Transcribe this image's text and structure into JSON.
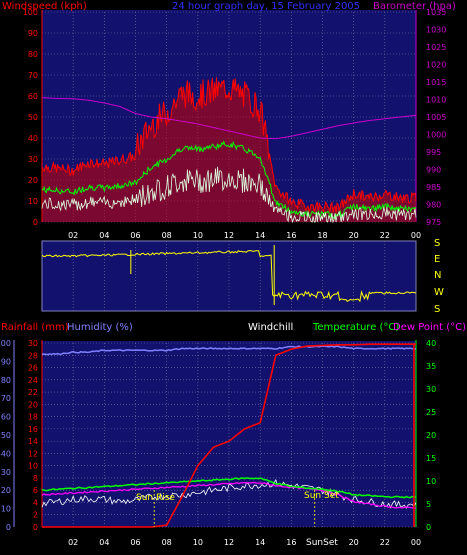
{
  "colors": {
    "background": "#000000",
    "panel": "#12126e",
    "grid": "#7a7aa8",
    "red": "#ff0000",
    "windspeed": "#ff0000",
    "gust_green": "#00ff00",
    "wind_white": "#e0ffe0",
    "barometer": "#cc00cc",
    "title": "#3030ff",
    "yellow": "#ffff00",
    "humidity": "#8080ff",
    "temperature": "#00ff00",
    "dewpoint": "#ff00ff",
    "windchill": "#ffffff",
    "sun": "#ffff00"
  },
  "top_chart": {
    "title": "24 hour graph day, 15 February 2005",
    "left_label": "Windspeed (kph)",
    "right_label": "Barometer (hpa)",
    "left_ticks": [
      "0",
      "10",
      "20",
      "30",
      "40",
      "50",
      "60",
      "70",
      "80",
      "90",
      "100"
    ],
    "right_ticks": [
      "975",
      "980",
      "985",
      "990",
      "995",
      "1000",
      "1005",
      "1010",
      "1015",
      "1020",
      "1025",
      "1030",
      "1035"
    ],
    "x_ticks": [
      "02",
      "04",
      "06",
      "08",
      "10",
      "12",
      "14",
      "16",
      "18",
      "20",
      "22",
      "00"
    ]
  },
  "direction_chart": {
    "labels": [
      "S",
      "E",
      "N",
      "W",
      "S"
    ]
  },
  "bottom_chart": {
    "rainfall_label": "Rainfall (mm)",
    "humidity_label": "Humidity (%)",
    "windchill_label": "Windchill",
    "temperature_label": "Temperature (°C)",
    "dewpoint_label": "Dew Point (°C)",
    "left_ticks": [
      "0",
      "10",
      "20",
      "30",
      "40",
      "50",
      "60",
      "70",
      "80",
      "90",
      "100"
    ],
    "mid_ticks": [
      "0",
      "2",
      "4",
      "6",
      "8",
      "10",
      "12",
      "14",
      "16",
      "18",
      "20",
      "22",
      "24",
      "26",
      "28",
      "30"
    ],
    "right_ticks": [
      "0",
      "5",
      "10",
      "15",
      "20",
      "25",
      "30",
      "35",
      "40"
    ],
    "x_ticks": [
      "02",
      "04",
      "06",
      "08",
      "10",
      "12",
      "14",
      "16",
      "18",
      "20",
      "22",
      "00"
    ],
    "sunrise_label": "Sun Rise",
    "sunset_label": "Sun Set",
    "sunset_tick_label": "SunSet"
  },
  "chart_data": [
    {
      "type": "line",
      "title": "24 hour graph day, 15 February 2005",
      "xlabel": "",
      "ylabel": "Windspeed (kph)",
      "y2label": "Barometer (hpa)",
      "ylim": [
        0,
        100
      ],
      "y2lim": [
        975,
        1035
      ],
      "x": [
        0,
        1,
        2,
        3,
        4,
        5,
        6,
        7,
        8,
        9,
        10,
        11,
        12,
        13,
        14,
        15,
        16,
        17,
        18,
        19,
        20,
        21,
        22,
        23,
        24
      ],
      "series": [
        {
          "name": "Windspeed (kph)",
          "values": [
            25,
            24,
            23,
            27,
            26,
            28,
            30,
            42,
            48,
            57,
            56,
            58,
            60,
            56,
            50,
            15,
            8,
            6,
            6,
            5,
            12,
            10,
            12,
            10,
            10
          ]
        },
        {
          "name": "Barometer (hpa)",
          "values": [
            1010.5,
            1010.3,
            1010.2,
            1009.8,
            1009,
            1008,
            1006,
            1005,
            1004.5,
            1003.8,
            1003,
            1002,
            1001,
            1000,
            999,
            998.8,
            999.5,
            1000.5,
            1001.5,
            1002.5,
            1003.3,
            1004,
            1004.5,
            1005,
            1005.5
          ]
        }
      ]
    },
    {
      "type": "line",
      "title": "",
      "ylabel": "Temperature (°C)",
      "ylim": [
        0,
        40
      ],
      "x": [
        0,
        1,
        2,
        3,
        4,
        5,
        6,
        7,
        8,
        9,
        10,
        11,
        12,
        13,
        14,
        15,
        16,
        17,
        18,
        19,
        20,
        21,
        22,
        23,
        24
      ],
      "series": [
        {
          "name": "Rainfall (mm)",
          "values": [
            0,
            0,
            0,
            0,
            0,
            0,
            0,
            0,
            0.3,
            5,
            10,
            13,
            14,
            16,
            17,
            28,
            29,
            29.5,
            29.6,
            29.7,
            29.7,
            29.8,
            29.8,
            29.8,
            29.8
          ]
        },
        {
          "name": "Humidity (%)",
          "values": [
            94,
            94,
            95,
            95,
            96,
            96,
            96,
            96,
            96,
            97,
            97,
            97,
            97,
            97,
            97,
            97,
            98,
            98,
            98,
            98,
            97,
            97,
            97,
            97,
            97
          ]
        },
        {
          "name": "Temperature (°C)",
          "values": [
            8,
            8.2,
            8.4,
            8.6,
            8.8,
            9,
            9.2,
            9.4,
            9.6,
            9.8,
            10,
            10.2,
            10.4,
            10.6,
            10.6,
            9.5,
            8.8,
            8.5,
            8.2,
            7.8,
            7,
            6.8,
            6.6,
            6.5,
            6.5
          ]
        },
        {
          "name": "Dew Point (°C)",
          "values": [
            7,
            7.2,
            7.4,
            7.6,
            7.8,
            8,
            8.2,
            8.4,
            8.6,
            8.8,
            9,
            9.2,
            9.4,
            9.6,
            9.6,
            9,
            8.6,
            8.3,
            8,
            7,
            5.5,
            5,
            4.5,
            4.2,
            4.2
          ]
        },
        {
          "name": "Windchill",
          "values": [
            5,
            5.5,
            6,
            6.2,
            6,
            5.5,
            5.8,
            6.5,
            6.8,
            7,
            7.5,
            8,
            8.5,
            9,
            9.2,
            9.5,
            9,
            8.5,
            8,
            7,
            6,
            5.5,
            5,
            4.8,
            5
          ]
        }
      ],
      "sunrise_hour": 7.2,
      "sunset_hour": 17.5
    }
  ]
}
